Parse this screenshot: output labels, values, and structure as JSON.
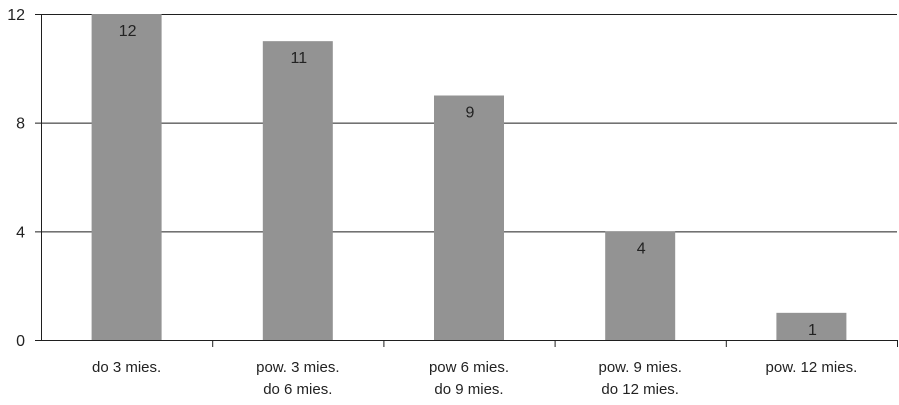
{
  "chart_data": {
    "type": "bar",
    "title": "",
    "xlabel": "",
    "ylabel": "",
    "categories": [
      [
        "do 3 mies."
      ],
      [
        "pow. 3 mies.",
        "do 6 mies."
      ],
      [
        "pow 6 mies.",
        "do 9 mies."
      ],
      [
        "pow. 9 mies.",
        "do 12 mies."
      ],
      [
        "pow. 12 mies."
      ]
    ],
    "values": [
      12,
      11,
      9,
      4,
      1
    ],
    "data_labels": [
      "12",
      "11",
      "9",
      "4",
      "1"
    ],
    "ylim": [
      0,
      12
    ],
    "yticks": [
      0,
      4,
      8,
      12
    ],
    "grid": true,
    "legend": "none",
    "bar_color": "#939393"
  }
}
